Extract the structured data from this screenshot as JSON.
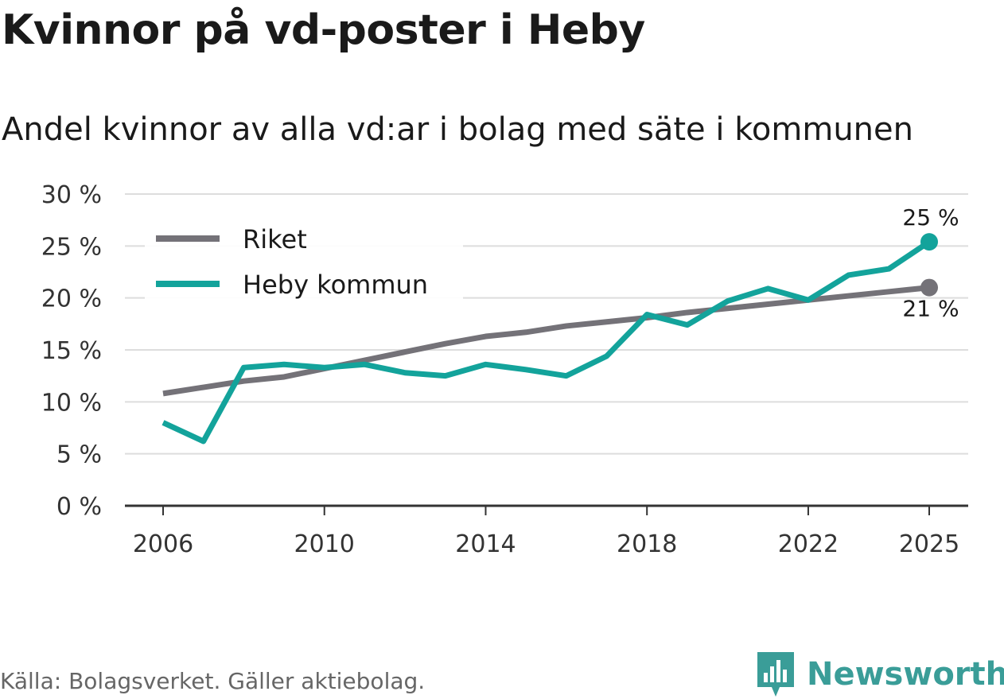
{
  "header": {
    "title": "Kvinnor på vd-poster i Heby",
    "subtitle": "Andel kvinnor av alla vd:ar i bolag med säte i kommunen"
  },
  "footer": {
    "source": "Källa: Bolagsverket. Gäller aktiebolag.",
    "brand": "Newsworthy"
  },
  "colors": {
    "riket": "#747278",
    "heby": "#13a39b",
    "grid": "#dddddd",
    "axis": "#333333",
    "brand": "#3a9d98"
  },
  "chart_data": {
    "type": "line",
    "title": "Andel kvinnor av alla vd:ar i bolag med säte i kommunen",
    "xlabel": "",
    "ylabel": "",
    "x": [
      2006,
      2007,
      2008,
      2009,
      2010,
      2011,
      2012,
      2013,
      2014,
      2015,
      2016,
      2017,
      2018,
      2019,
      2020,
      2021,
      2022,
      2023,
      2024,
      2025
    ],
    "xticks": [
      2006,
      2010,
      2014,
      2018,
      2022,
      2025
    ],
    "yticks": [
      0,
      5,
      10,
      15,
      20,
      25,
      30
    ],
    "ytick_labels": [
      "0 %",
      "5 %",
      "10 %",
      "15 %",
      "20 %",
      "25 %",
      "30 %"
    ],
    "ylim": [
      0,
      30
    ],
    "legend_position": "top-left",
    "series": [
      {
        "name": "Riket",
        "color": "#747278",
        "values": [
          10.8,
          11.4,
          12.0,
          12.4,
          13.2,
          14.0,
          14.8,
          15.6,
          16.3,
          16.7,
          17.3,
          17.7,
          18.1,
          18.6,
          19.0,
          19.4,
          19.8,
          20.2,
          20.6,
          21.0
        ],
        "end_label": "21 %"
      },
      {
        "name": "Heby kommun",
        "color": "#13a39b",
        "values": [
          8.0,
          6.2,
          13.3,
          13.6,
          13.3,
          13.6,
          12.8,
          12.5,
          13.6,
          13.1,
          12.5,
          14.4,
          18.4,
          17.4,
          19.7,
          20.9,
          19.8,
          22.2,
          22.8,
          25.4
        ],
        "end_label": "25 %"
      }
    ]
  }
}
